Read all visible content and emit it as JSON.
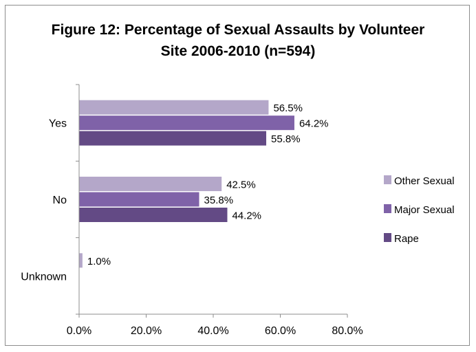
{
  "chart_data": {
    "type": "bar",
    "orientation": "horizontal",
    "title_lines": [
      "Figure 12:  Percentage of Sexual Assaults by Volunteer",
      "Site 2006-2010 (n=594)"
    ],
    "categories": [
      "Yes",
      "No",
      "Unknown"
    ],
    "series": [
      {
        "name": "Other Sexual",
        "color": "#b4a7c9",
        "values": [
          56.5,
          42.5,
          1.0
        ],
        "labels": [
          "56.5%",
          "42.5%",
          "1.0%"
        ]
      },
      {
        "name": "Major Sexual",
        "color": "#7f62a8",
        "values": [
          64.2,
          35.8,
          null
        ],
        "labels": [
          "64.2%",
          "35.8%",
          ""
        ]
      },
      {
        "name": "Rape",
        "color": "#634a85",
        "values": [
          55.8,
          44.2,
          null
        ],
        "labels": [
          "55.8%",
          "44.2%",
          ""
        ]
      }
    ],
    "xlim": [
      0,
      80
    ],
    "xticks": [
      0,
      20,
      40,
      60,
      80
    ],
    "xtick_labels": [
      "0.0%",
      "20.0%",
      "40.0%",
      "60.0%",
      "80.0%"
    ],
    "xlabel": "",
    "ylabel": "",
    "grid": false,
    "legend_position": "right"
  }
}
